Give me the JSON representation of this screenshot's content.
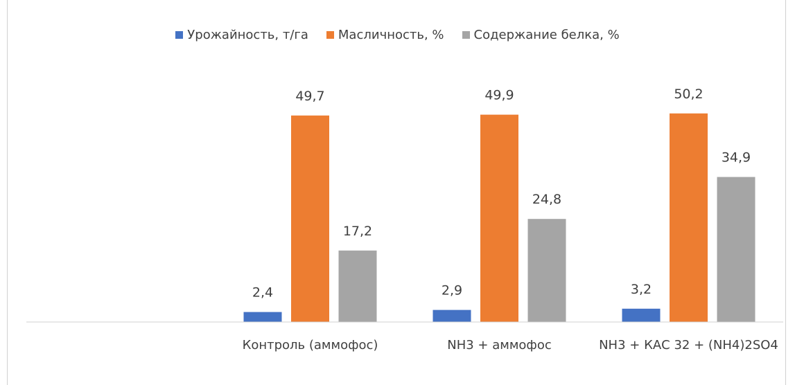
{
  "chart_data": {
    "type": "bar",
    "categories": [
      null,
      "Контроль (аммофос)",
      "NH3 + аммофос",
      "NH3 + КАС 32 + (NH4)2SO4"
    ],
    "series": [
      {
        "name": "Урожайность, т/га",
        "color": "#4472c4",
        "values": [
          null,
          2.4,
          2.9,
          3.2
        ],
        "value_labels": [
          null,
          "2,4",
          "2,9",
          "3,2"
        ]
      },
      {
        "name": "Масличность, %",
        "color": "#ed7d31",
        "values": [
          null,
          49.7,
          49.9,
          50.2
        ],
        "value_labels": [
          null,
          "49,7",
          "49,9",
          "50,2"
        ]
      },
      {
        "name": "Содержание белка, %",
        "color": "#a5a5a5",
        "values": [
          null,
          17.2,
          24.8,
          34.9
        ],
        "value_labels": [
          null,
          "17,2",
          "24,8",
          "34,9"
        ]
      }
    ],
    "ylim": [
      0,
      60
    ],
    "legend": "top"
  }
}
